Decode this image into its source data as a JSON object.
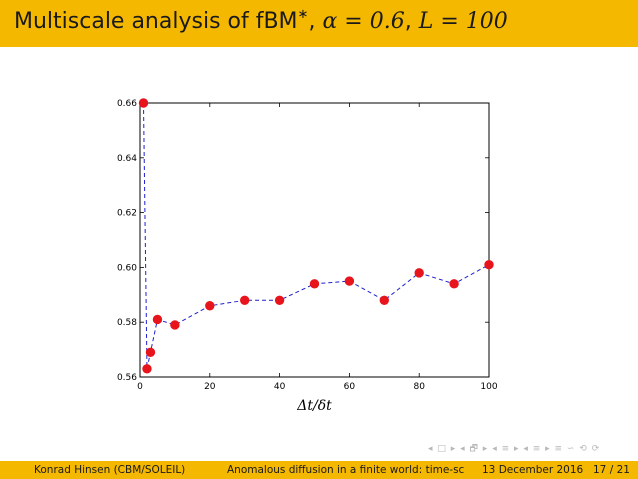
{
  "slide": {
    "title_prefix": "Multiscale analysis of fBM",
    "title_star": "∗",
    "title_mid": ", ",
    "title_alpha": "α = 0.6",
    "title_sep": ", ",
    "title_L": "L = 100"
  },
  "footer": {
    "author": "Konrad Hinsen  (CBM/SOLEIL)",
    "talk": "Anomalous diffusion in a finite world: time-sc",
    "date": "13 December 2016",
    "page": "17 / 21"
  },
  "nav_symbols": "◂ □ ▸ ◂ 🗗 ▸ ◂ ≡ ▸ ◂ ≡ ▸   ≡   ∽ ⟲ ⟳",
  "colors": {
    "accent": "#f5b800",
    "marker": "#e8141c",
    "line": "#1f1fcf"
  },
  "chart_data": {
    "type": "line",
    "xlabel": "Δt/δt",
    "ylabel": "",
    "xlim": [
      0,
      100
    ],
    "ylim": [
      0.56,
      0.66
    ],
    "xticks": [
      "0",
      "20",
      "40",
      "60",
      "80",
      "100"
    ],
    "yticks": [
      "0.56",
      "0.58",
      "0.60",
      "0.62",
      "0.64",
      "0.66"
    ],
    "grid": false,
    "series": [
      {
        "x": [
          1,
          2,
          3,
          5,
          10,
          20,
          30,
          40,
          50,
          60,
          70,
          80,
          90,
          100
        ],
        "values": [
          0.66,
          0.563,
          0.569,
          0.581,
          0.579,
          0.586,
          0.588,
          0.588,
          0.594,
          0.595,
          0.588,
          0.598,
          0.594,
          0.601
        ]
      }
    ]
  }
}
